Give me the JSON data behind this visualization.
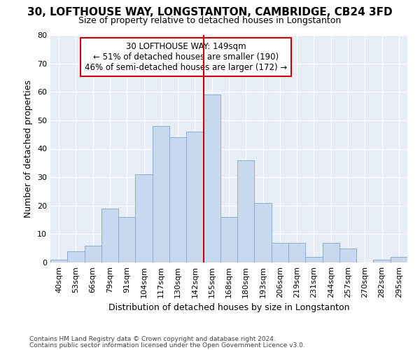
{
  "title": "30, LOFTHOUSE WAY, LONGSTANTON, CAMBRIDGE, CB24 3FD",
  "subtitle": "Size of property relative to detached houses in Longstanton",
  "xlabel": "Distribution of detached houses by size in Longstanton",
  "ylabel": "Number of detached properties",
  "footnote1": "Contains HM Land Registry data © Crown copyright and database right 2024.",
  "footnote2": "Contains public sector information licensed under the Open Government Licence v3.0.",
  "annotation_line1": "30 LOFTHOUSE WAY: 149sqm",
  "annotation_line2": "← 51% of detached houses are smaller (190)",
  "annotation_line3": "46% of semi-detached houses are larger (172) →",
  "bar_color": "#c8d8ef",
  "bar_edge_color": "#8aadd4",
  "vline_color": "#cc0000",
  "box_edge_color": "#cc0000",
  "background_color": "#e8eef8",
  "fig_background": "#ffffff",
  "categories": [
    "40sqm",
    "53sqm",
    "66sqm",
    "79sqm",
    "91sqm",
    "104sqm",
    "117sqm",
    "130sqm",
    "142sqm",
    "155sqm",
    "168sqm",
    "180sqm",
    "193sqm",
    "206sqm",
    "219sqm",
    "231sqm",
    "244sqm",
    "257sqm",
    "270sqm",
    "282sqm",
    "295sqm"
  ],
  "bar_heights": [
    1,
    4,
    6,
    19,
    16,
    31,
    48,
    44,
    46,
    59,
    16,
    36,
    21,
    7,
    7,
    2,
    7,
    5,
    0,
    1,
    2
  ],
  "ylim": [
    0,
    80
  ],
  "yticks": [
    0,
    10,
    20,
    30,
    40,
    50,
    60,
    70,
    80
  ],
  "vline_x_index": 9.0,
  "figsize": [
    6.0,
    5.0
  ],
  "dpi": 100,
  "title_fontsize": 11,
  "subtitle_fontsize": 9,
  "ylabel_fontsize": 9,
  "xlabel_fontsize": 9,
  "tick_fontsize": 8,
  "footnote_fontsize": 6.5,
  "annotation_fontsize": 8.5
}
